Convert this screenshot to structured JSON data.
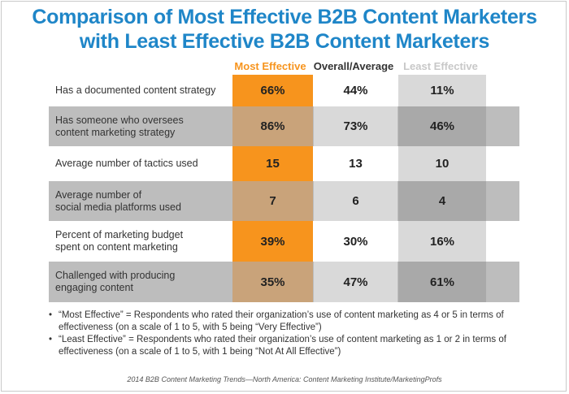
{
  "title_line1": "Comparison of Most Effective B2B Content Marketers",
  "title_line2": "with Least Effective B2B Content Marketers",
  "chart_data": {
    "type": "table",
    "columns": [
      "Most Effective",
      "Overall/Average",
      "Least Effective"
    ],
    "column_colors": [
      "#f7941d",
      "#333333",
      "#c8c8c8"
    ],
    "rows": [
      {
        "label": "Has a documented content strategy",
        "values": [
          "66%",
          "44%",
          "11%"
        ]
      },
      {
        "label": "Has someone who oversees\ncontent marketing strategy",
        "values": [
          "86%",
          "73%",
          "46%"
        ]
      },
      {
        "label": "Average number of tactics used",
        "values": [
          "15",
          "13",
          "10"
        ]
      },
      {
        "label": "Average number of\nsocial media platforms used",
        "values": [
          "7",
          "6",
          "4"
        ]
      },
      {
        "label": "Percent of marketing budget\nspent on content marketing",
        "values": [
          "39%",
          "30%",
          "16%"
        ]
      },
      {
        "label": "Challenged with producing\nengaging content",
        "values": [
          "35%",
          "47%",
          "61%"
        ]
      }
    ],
    "row_shades": {
      "odd": {
        "label": "#ffffff",
        "most": "#f7941d",
        "overall": "#ffffff",
        "least": "#d9d9d9"
      },
      "even": {
        "label": "#bdbdbd",
        "most": "#c9a37a",
        "overall": "#d9d9d9",
        "least": "#a9a9a9"
      }
    }
  },
  "notes": [
    "“Most Effective” = Respondents who rated their organization’s use of content marketing as 4 or 5 in terms of effectiveness (on a scale of 1 to 5, with 5 being “Very Effective”)",
    "“Least Effective” = Respondents who rated their organization’s use of content marketing as 1 or 2 in terms of effectiveness (on a scale of 1 to 5, with 1 being “Not At All Effective”)"
  ],
  "bullet": "•",
  "source": "2014 B2B Content Marketing Trends—North America: Content Marketing Institute/MarketingProfs"
}
